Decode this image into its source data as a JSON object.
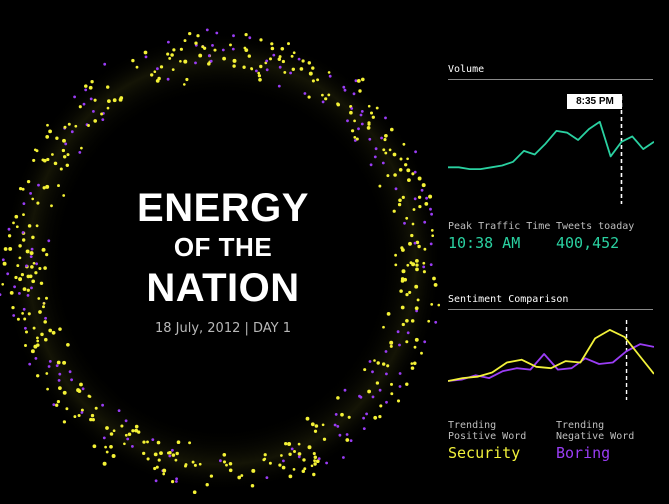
{
  "header": {
    "title_line1": "ENERGY",
    "title_line2": "OF THE",
    "title_line3": "NATION",
    "date": "18 July, 2012 | DAY 1"
  },
  "volume": {
    "section_label": "Volume",
    "time_marker": "8:35 PM",
    "peak_label": "Peak Traffic Time",
    "peak_value": "10:38 AM",
    "tweets_label": "Tweets toaday",
    "tweets_value": "400,452"
  },
  "sentiment": {
    "section_label": "Sentiment Comparison",
    "positive_label_line1": "Trending",
    "positive_label_line2": "Positive Word",
    "positive_word": "Security",
    "negative_label_line1": "Trending",
    "negative_label_line2": "Negative Word",
    "negative_word": "Boring"
  },
  "colors": {
    "volume": "#2ad1a1",
    "positive": "#f2f23a",
    "negative": "#9a3df5",
    "background": "#000000"
  },
  "chart_data": [
    {
      "type": "line",
      "series": [
        {
          "values": [
            18,
            18,
            17,
            17,
            18,
            19,
            21,
            27,
            25,
            31,
            38,
            37,
            33,
            39,
            43,
            24,
            32,
            35,
            28,
            32
          ]
        }
      ],
      "marker": {
        "index": 16,
        "label": "8:35 PM"
      },
      "ylim": [
        0,
        55
      ],
      "grid": false
    },
    {
      "type": "line",
      "series": [
        {
          "name": "Security",
          "values": [
            12,
            14,
            15,
            18,
            25,
            27,
            22,
            21,
            26,
            25,
            42,
            48,
            43,
            30,
            17
          ]
        },
        {
          "name": "Boring",
          "values": [
            12,
            13,
            16,
            14,
            19,
            21,
            20,
            31,
            20,
            21,
            28,
            24,
            25,
            33,
            38,
            36
          ]
        }
      ],
      "marker_index": 13,
      "ylim": [
        0,
        55
      ],
      "grid": false
    }
  ]
}
